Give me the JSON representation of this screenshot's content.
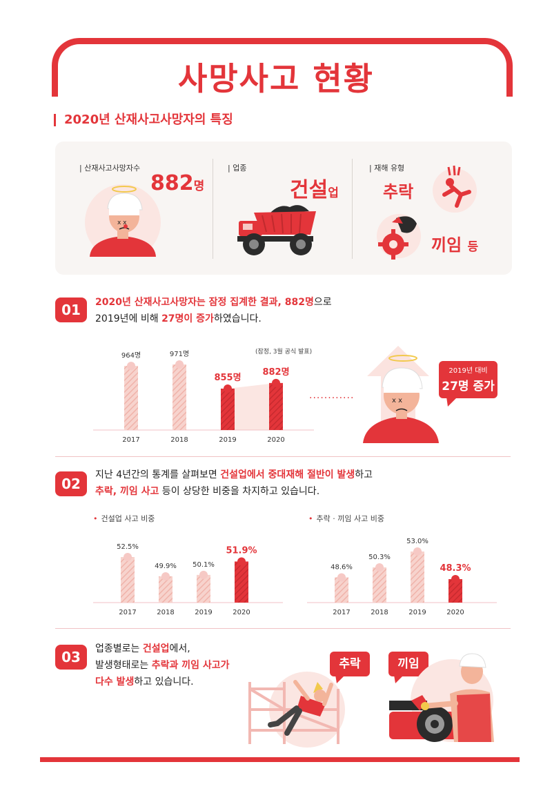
{
  "title": "사망사고 현황",
  "section_title": "2020년 산재사고사망자의 특징",
  "summary": {
    "deaths": {
      "label": "| 산재사고사망자수",
      "value": "882",
      "unit": "명"
    },
    "industry": {
      "label": "| 업종",
      "value": "건설",
      "unit": "업"
    },
    "accident_type": {
      "label": "| 재해 유형",
      "fall": "추락",
      "caught": "끼임",
      "etc": "등"
    }
  },
  "point1": {
    "number": "01",
    "line1_bold1": "2020년 산재사고사망자는 ",
    "line1_red1": "잠정 집계한 결과, 882명",
    "line1_tail": "으로",
    "line2_pre": "2019년에 비해 ",
    "line2_red": "27명이 증가",
    "line2_tail": "하였습니다.",
    "note": "(잠정, 3월 공식 발표)",
    "bubble_small": "2019년 대비",
    "bubble_big": "27명 증가",
    "dots": "............"
  },
  "point2": {
    "number": "02",
    "line1_pre": "지난 4년간의 통계를 살펴보면 ",
    "line1_red": "건설업에서 중대재해 절반이 발생",
    "line1_tail": "하고",
    "line2_red": "추락, 끼임 사고",
    "line2_tail": " 등이 상당한 비중을 차지하고 있습니다.",
    "left_title": "건설업 사고 비중",
    "right_title": "추락 · 끼임 사고 비중"
  },
  "point3": {
    "number": "03",
    "line1_pre": "업종별로는 ",
    "line1_red": "건설업",
    "line1_tail": "에서,",
    "line2_pre": "발생형태로는 ",
    "line2_red": "추락과 끼임 사고가",
    "line3_red": "다수 발생",
    "line3_tail": "하고 있습니다.",
    "bubble_fall": "추락",
    "bubble_caught": "끼임"
  },
  "colors": {
    "accent": "#e3353a",
    "light": "#f6c9c5",
    "bg": "#f8f5f3"
  },
  "chart_data": [
    {
      "type": "bar",
      "title": "",
      "categories": [
        "2017",
        "2018",
        "2019",
        "2020"
      ],
      "values": [
        964,
        971,
        855,
        882
      ],
      "value_labels": [
        "964명",
        "971명",
        "855명",
        "882명"
      ],
      "ylim": [
        0,
        1000
      ]
    },
    {
      "type": "bar",
      "title": "건설업 사고 비중",
      "categories": [
        "2017",
        "2018",
        "2019",
        "2020"
      ],
      "values": [
        52.5,
        49.9,
        50.1,
        51.9
      ],
      "value_labels": [
        "52.5%",
        "49.9%",
        "50.1%",
        "51.9%"
      ]
    },
    {
      "type": "bar",
      "title": "추락 · 끼임 사고 비중",
      "categories": [
        "2017",
        "2018",
        "2019",
        "2020"
      ],
      "values": [
        48.6,
        50.3,
        53.0,
        48.3
      ],
      "value_labels": [
        "48.6%",
        "50.3%",
        "53.0%",
        "48.3%"
      ]
    }
  ]
}
